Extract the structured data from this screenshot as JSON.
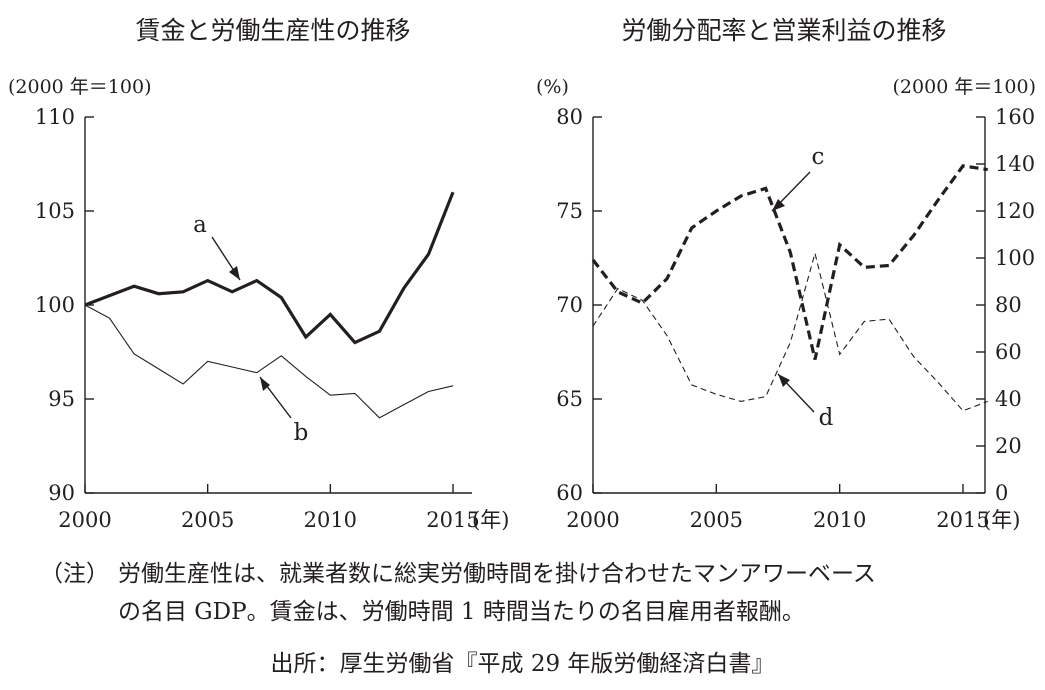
{
  "notes": {
    "head": "（注）",
    "line1": "労働生産性は、就業者数に総実労働時間を掛け合わせたマンアワーベース",
    "line2": "の名目 GDP。賃金は、労働時間 1 時間当たりの名目雇用者報酬。"
  },
  "source": "出所：厚生労働省『平成 29 年版労働経済白書』",
  "chart_data": [
    {
      "type": "line",
      "title": "賃金と労働生産性の推移",
      "y_unit": "(2000 年＝100)",
      "x_unit": "(年)",
      "xlim": [
        2000,
        2016
      ],
      "ylim": [
        90,
        110
      ],
      "xticks": [
        2000,
        2005,
        2010,
        2015
      ],
      "yticks": [
        90,
        95,
        100,
        105,
        110
      ],
      "grid": false,
      "series": [
        {
          "name": "a",
          "style": "thick-solid",
          "x": [
            2000,
            2001,
            2002,
            2003,
            2004,
            2005,
            2006,
            2007,
            2008,
            2009,
            2010,
            2011,
            2012,
            2013,
            2014,
            2015
          ],
          "values": [
            100.0,
            100.5,
            101.0,
            100.6,
            100.7,
            101.3,
            100.7,
            101.3,
            100.4,
            98.3,
            99.5,
            98.0,
            98.6,
            100.9,
            102.7,
            106.0
          ]
        },
        {
          "name": "b",
          "style": "thin-solid",
          "x": [
            2000,
            2001,
            2002,
            2003,
            2004,
            2005,
            2006,
            2007,
            2008,
            2009,
            2010,
            2011,
            2012,
            2013,
            2014,
            2015
          ],
          "values": [
            100.0,
            99.3,
            97.4,
            96.6,
            95.8,
            97.0,
            96.7,
            96.4,
            97.3,
            96.2,
            95.2,
            95.3,
            94.0,
            94.7,
            95.4,
            95.7
          ]
        }
      ]
    },
    {
      "type": "line",
      "title": "労働分配率と営業利益の推移",
      "y_unit": "(%)",
      "y2_unit": "(2000 年＝100)",
      "x_unit": "(年)",
      "xlim": [
        2000,
        2016
      ],
      "ylim": [
        60,
        80
      ],
      "y2lim": [
        0,
        160
      ],
      "xticks": [
        2000,
        2005,
        2010,
        2015
      ],
      "yticks": [
        60,
        65,
        70,
        75,
        80
      ],
      "y2ticks": [
        0,
        20,
        40,
        60,
        80,
        100,
        120,
        140,
        160
      ],
      "grid": false,
      "series": [
        {
          "name": "c",
          "style": "thick-dashed",
          "axis": "left",
          "x": [
            2000,
            2001,
            2002,
            2003,
            2004,
            2005,
            2006,
            2007,
            2008,
            2009,
            2010,
            2011,
            2012,
            2013,
            2014,
            2015,
            2016
          ],
          "values": [
            72.4,
            70.7,
            70.1,
            71.4,
            74.1,
            75.0,
            75.8,
            76.2,
            72.8,
            67.1,
            73.2,
            72.0,
            72.1,
            73.7,
            75.6,
            77.4,
            77.2
          ]
        },
        {
          "name": "d",
          "style": "thin-dashed",
          "axis": "right",
          "x": [
            2000,
            2001,
            2002,
            2003,
            2004,
            2005,
            2006,
            2007,
            2008,
            2009,
            2010,
            2011,
            2012,
            2013,
            2014,
            2015,
            2016
          ],
          "values": [
            71,
            87,
            82,
            67,
            46,
            42,
            39,
            41,
            64,
            102,
            59,
            73,
            74,
            58,
            47,
            35,
            39
          ]
        }
      ]
    }
  ]
}
